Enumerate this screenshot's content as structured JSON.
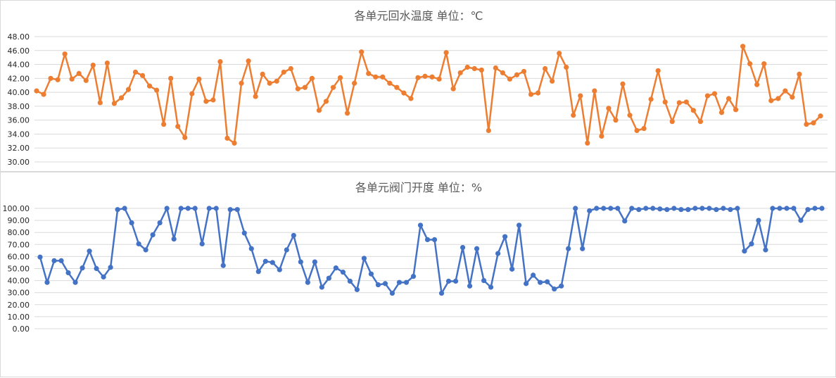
{
  "chart_data": [
    {
      "type": "line",
      "title": "各单元回水温度 单位：℃",
      "color": "#ED7D31",
      "ylim": [
        30,
        48
      ],
      "ystep": 2,
      "decimals": 2,
      "grid": true,
      "categories_visible": false,
      "series": [
        {
          "values": [
            40.2,
            39.7,
            42.0,
            41.8,
            45.5,
            41.9,
            42.7,
            41.7,
            43.9,
            38.5,
            44.2,
            38.4,
            39.2,
            40.4,
            42.9,
            42.4,
            40.9,
            40.3,
            35.4,
            42.0,
            35.1,
            33.5,
            39.8,
            41.9,
            38.7,
            38.9,
            44.4,
            33.4,
            32.7,
            41.3,
            44.5,
            39.4,
            42.6,
            41.3,
            41.6,
            42.9,
            43.4,
            40.5,
            40.7,
            42.0,
            37.4,
            38.7,
            40.7,
            42.1,
            37.0,
            41.3,
            45.8,
            42.7,
            42.2,
            42.2,
            41.3,
            40.7,
            39.9,
            39.1,
            42.1,
            42.3,
            42.2,
            41.9,
            45.7,
            40.5,
            42.8,
            43.6,
            43.4,
            43.2,
            34.5,
            43.5,
            42.8,
            41.9,
            42.5,
            43.0,
            39.7,
            39.9,
            43.4,
            41.6,
            45.6,
            43.6,
            36.7,
            39.5,
            32.7,
            40.2,
            33.7,
            37.7,
            36.0,
            41.2,
            36.7,
            34.5,
            34.8,
            39.0,
            43.1,
            38.6,
            35.8,
            38.5,
            38.6,
            37.4,
            35.8,
            39.5,
            39.8,
            37.1,
            39.1,
            37.5,
            46.6,
            44.1,
            41.1,
            44.1,
            38.8,
            39.1,
            40.2,
            39.3,
            42.6,
            35.4,
            35.6,
            36.6
          ]
        }
      ]
    },
    {
      "type": "line",
      "title": "各单元阀门开度 单位：%",
      "color": "#4472C4",
      "ylim": [
        0,
        100
      ],
      "ystep": 10,
      "decimals": 2,
      "grid": true,
      "categories_visible": true,
      "series": [
        {
          "values": [
            59.5,
            38.5,
            56.5,
            56.5,
            46.5,
            38.5,
            50.5,
            64.5,
            50.0,
            43.0,
            51.0,
            99.0,
            100.0,
            88.0,
            70.5,
            65.5,
            78.0,
            88.0,
            100.0,
            74.5,
            100.0,
            100.0,
            100.0,
            70.5,
            100.0,
            100.0,
            52.5,
            99.0,
            99.0,
            79.5,
            66.5,
            47.5,
            56.0,
            55.0,
            49.0,
            65.5,
            77.5,
            55.5,
            38.5,
            55.5,
            34.5,
            42.0,
            50.5,
            47.0,
            39.5,
            32.5,
            58.5,
            45.5,
            36.5,
            37.5,
            29.5,
            38.5,
            38.5,
            43.5,
            86.0,
            74.0,
            74.0,
            29.5,
            39.5,
            39.5,
            67.5,
            35.5,
            66.5,
            40.0,
            34.5,
            62.5,
            76.5,
            49.5,
            86.0,
            37.5,
            44.5,
            38.5,
            39.0,
            33.0,
            35.5,
            66.5,
            100.0,
            66.5,
            98.0,
            100.0,
            100.0,
            100.0,
            100.0,
            89.5,
            100.0,
            99.0,
            100.0,
            100.0,
            99.5,
            99.0,
            100.0,
            99.0,
            99.0,
            100.0,
            100.0,
            100.0,
            99.0,
            100.0,
            99.0,
            100.0,
            64.5,
            70.5,
            90.0,
            65.5,
            100.0,
            100.0,
            100.0,
            100.0,
            90.0,
            99.0,
            100.0,
            100.0
          ]
        }
      ]
    }
  ]
}
